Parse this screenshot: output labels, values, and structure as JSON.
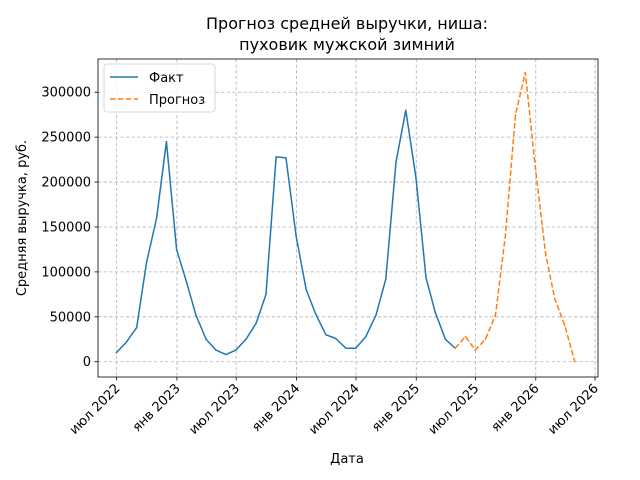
{
  "chart_data": {
    "type": "line",
    "title_lines": [
      "Прогноз средней выручки, ниша:",
      "пуховик мужской зимний"
    ],
    "xlabel": "Дата",
    "ylabel": "Средняя выручка, руб.",
    "xlim": [
      "2022-05-05",
      "2026-07-10"
    ],
    "ylim": [
      -17000,
      337000
    ],
    "x_ticks": [
      {
        "date": "2022-07-01",
        "label": "июл 2022"
      },
      {
        "date": "2023-01-01",
        "label": "янв 2023"
      },
      {
        "date": "2023-07-01",
        "label": "июл 2023"
      },
      {
        "date": "2024-01-01",
        "label": "янв 2024"
      },
      {
        "date": "2024-07-01",
        "label": "июл 2024"
      },
      {
        "date": "2025-01-01",
        "label": "янв 2025"
      },
      {
        "date": "2025-07-01",
        "label": "июл 2025"
      },
      {
        "date": "2026-01-01",
        "label": "янв 2026"
      },
      {
        "date": "2026-07-01",
        "label": "июл 2026"
      }
    ],
    "y_ticks": [
      {
        "value": 0,
        "label": "0"
      },
      {
        "value": 50000,
        "label": "50000"
      },
      {
        "value": 100000,
        "label": "100000"
      },
      {
        "value": 150000,
        "label": "150000"
      },
      {
        "value": 200000,
        "label": "200000"
      },
      {
        "value": 250000,
        "label": "250000"
      },
      {
        "value": 300000,
        "label": "300000"
      }
    ],
    "grid": true,
    "legend_position": "top-left",
    "series": [
      {
        "name": "Факт",
        "color": "#1f77b4",
        "style": "solid",
        "points": [
          [
            "2022-06-30",
            10000
          ],
          [
            "2022-07-31",
            22000
          ],
          [
            "2022-08-31",
            38000
          ],
          [
            "2022-09-30",
            110000
          ],
          [
            "2022-10-31",
            160000
          ],
          [
            "2022-11-30",
            245000
          ],
          [
            "2022-12-31",
            125000
          ],
          [
            "2023-01-31",
            88000
          ],
          [
            "2023-02-28",
            52000
          ],
          [
            "2023-03-31",
            25000
          ],
          [
            "2023-04-30",
            13000
          ],
          [
            "2023-05-31",
            8000
          ],
          [
            "2023-06-30",
            13000
          ],
          [
            "2023-07-31",
            25000
          ],
          [
            "2023-08-31",
            43000
          ],
          [
            "2023-09-30",
            75000
          ],
          [
            "2023-10-31",
            228000
          ],
          [
            "2023-11-30",
            227000
          ],
          [
            "2023-12-31",
            140000
          ],
          [
            "2024-01-31",
            80000
          ],
          [
            "2024-02-29",
            53000
          ],
          [
            "2024-03-31",
            30000
          ],
          [
            "2024-04-30",
            26000
          ],
          [
            "2024-05-31",
            15000
          ],
          [
            "2024-06-30",
            15000
          ],
          [
            "2024-07-31",
            28000
          ],
          [
            "2024-08-31",
            52000
          ],
          [
            "2024-09-30",
            92000
          ],
          [
            "2024-10-31",
            222000
          ],
          [
            "2024-11-30",
            280000
          ],
          [
            "2024-12-31",
            205000
          ],
          [
            "2025-01-31",
            93000
          ],
          [
            "2025-02-28",
            55000
          ],
          [
            "2025-03-31",
            25000
          ],
          [
            "2025-04-30",
            15000
          ]
        ]
      },
      {
        "name": "Прогноз",
        "color": "#ff7f0e",
        "style": "dashed",
        "points": [
          [
            "2025-04-30",
            15000
          ],
          [
            "2025-05-31",
            28000
          ],
          [
            "2025-06-30",
            13000
          ],
          [
            "2025-07-31",
            25000
          ],
          [
            "2025-08-31",
            52000
          ],
          [
            "2025-09-30",
            140000
          ],
          [
            "2025-10-31",
            275000
          ],
          [
            "2025-11-30",
            322000
          ],
          [
            "2025-12-31",
            215000
          ],
          [
            "2026-01-31",
            120000
          ],
          [
            "2026-02-28",
            70000
          ],
          [
            "2026-03-31",
            40000
          ],
          [
            "2026-04-30",
            0
          ]
        ]
      }
    ]
  }
}
